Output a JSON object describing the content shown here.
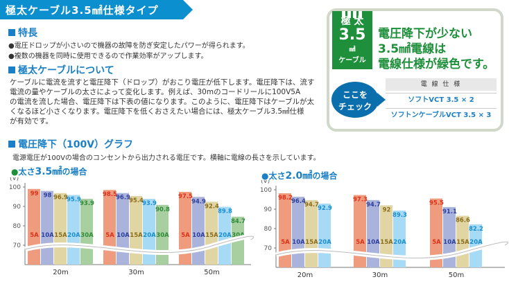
{
  "header": {
    "title": "極太ケーブル3.5㎟仕様タイプ"
  },
  "features": {
    "heading": "特長",
    "items": [
      "●電圧ドロップが小さいので機器の故障を防ぎ安定したパワーが得られます。",
      "●複数の機器を同時に使用できるので作業効率がアップします。"
    ]
  },
  "about": {
    "heading": "極太ケーブルについて",
    "lines": [
      "ケーブルに電流を流すと電圧降下（ドロップ）がおこり電圧が低下します。電圧降下は、流す",
      "電流の量やケーブルの太さによって変化します。例えば、30mのコードリールに100V5A",
      "の電流を流した場合、電圧降下は下表の値になります。このように、電圧降下はケーブルが太",
      "くなるほど小さくなります。電圧降下を低くおさえたい場合には、極太ケーブル3.5㎟仕様",
      "が有効です。"
    ]
  },
  "callout": {
    "badge_line1": "極 太",
    "badge_line2": "3.5",
    "badge_line3": "㎟",
    "badge_line4": "ケーブル",
    "headline": [
      "電圧降下が少ない",
      "3.5㎟電線は",
      "電線仕様が緑色です。"
    ],
    "check": [
      "ここを",
      "チェック"
    ],
    "spec_header": "電 線 仕 様",
    "spec_rows": [
      "ソフトVCT 3.5 × 2",
      "ソフトンケーブルVCT 3.5 × 3"
    ]
  },
  "graph_section": {
    "heading": "電圧降下（100V）グラフ",
    "note": "電源電圧が100Vの場合のコンセントから出力される電圧です。横軸に電線の長さを示しています。"
  },
  "chart_data": [
    {
      "type": "bar",
      "title": "●太さ3.5㎟の場合",
      "title_parts": [
        "●",
        "太さ",
        "3.5㎟",
        "の場合"
      ],
      "ylabel": "(V)",
      "ylim": [
        65,
        100
      ],
      "yticks": [
        "100",
        "90",
        "80",
        "70"
      ],
      "categories": [
        "20m",
        "30m",
        "50m"
      ],
      "series_labels": [
        "5A",
        "10A",
        "15A",
        "20A",
        "30A"
      ],
      "series_colors": [
        "#ef9b7e",
        "#a9b3dc",
        "#e0d5a3",
        "#a7daf4",
        "#a8cf9f"
      ],
      "label_colors": [
        "#d9331a",
        "#2f3f9c",
        "#8a6d1c",
        "#1a8fd0",
        "#2e8b3a"
      ],
      "values": [
        [
          99,
          98,
          96.9,
          95.9,
          93.9
        ],
        [
          98.5,
          96.9,
          95.4,
          93.9,
          90.8
        ],
        [
          97.5,
          94.9,
          92.4,
          89.8,
          84.7
        ]
      ],
      "value_labels": [
        [
          "99",
          "98",
          "96.9",
          "95.9",
          "93.9"
        ],
        [
          "98.5",
          "96.9",
          "95.4",
          "93.9",
          "90.8"
        ],
        [
          "97.5",
          "94.9",
          "92.4",
          "89.8",
          "84.7"
        ]
      ]
    },
    {
      "type": "bar",
      "title": "●太さ2.0㎟の場合",
      "title_parts": [
        "●",
        "太さ",
        "2.0㎟",
        "の場合"
      ],
      "ylabel": "(V)",
      "ylim": [
        65,
        100
      ],
      "yticks": [
        "100",
        "90",
        "80",
        "70"
      ],
      "categories": [
        "20m",
        "30m",
        "50m"
      ],
      "series_labels": [
        "5A",
        "10A",
        "15A",
        "20A"
      ],
      "series_colors": [
        "#ef9b7e",
        "#a9b3dc",
        "#e0d5a3",
        "#a7daf4"
      ],
      "label_colors": [
        "#d9331a",
        "#2f3f9c",
        "#8a6d1c",
        "#1a8fd0"
      ],
      "values": [
        [
          98.2,
          96.4,
          94.7,
          92.9
        ],
        [
          97.3,
          94.7,
          92,
          89.3
        ],
        [
          95.5,
          91.1,
          86.6,
          82.2
        ]
      ],
      "value_labels": [
        [
          "98.2",
          "96.4",
          "94.7",
          "92.9"
        ],
        [
          "97.3",
          "94.7",
          "92",
          "89.3"
        ],
        [
          "95.5",
          "91.1",
          "86.6",
          "82.2"
        ]
      ]
    }
  ]
}
